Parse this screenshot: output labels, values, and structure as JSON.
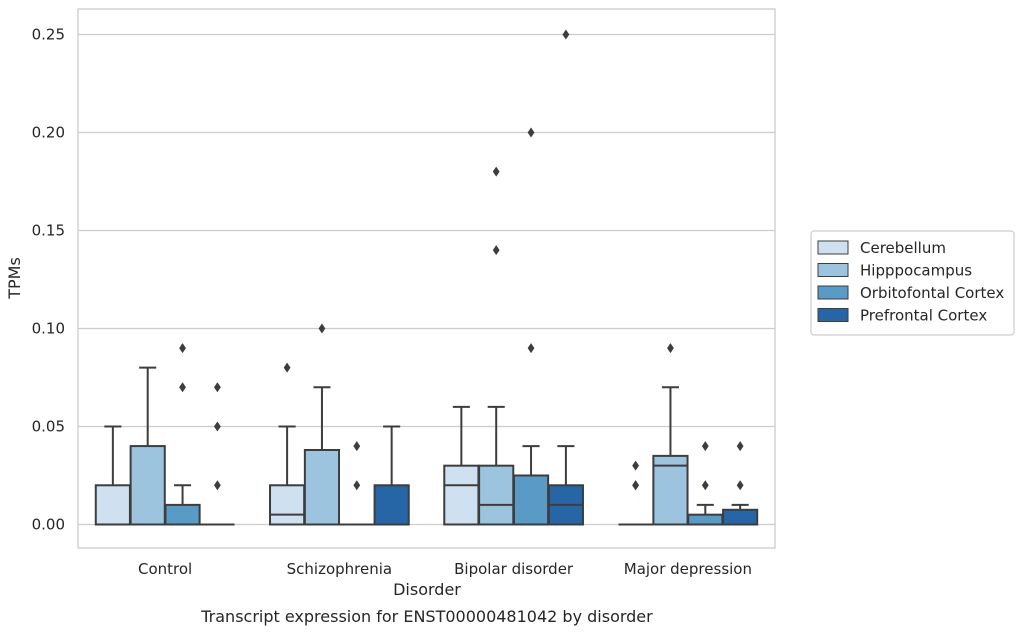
{
  "chart_data": {
    "type": "box",
    "title": "",
    "caption": "Transcript expression for ENST00000481042 by disorder",
    "xlabel": "Disorder",
    "ylabel": "TPMs",
    "ylim": [
      -0.012,
      0.263
    ],
    "yticks": [
      0.0,
      0.05,
      0.1,
      0.15,
      0.2,
      0.25
    ],
    "ytick_labels": [
      "0.00",
      "0.05",
      "0.10",
      "0.15",
      "0.20",
      "0.25"
    ],
    "grid": "horizontal",
    "legend_position": "right",
    "categories": [
      "Control",
      "Schizophrenia",
      "Bipolar disorder",
      "Major depression"
    ],
    "series": [
      {
        "name": "Cerebellum",
        "color": "#cfe0f1",
        "boxes": [
          {
            "q1": 0.0,
            "median": 0.0,
            "q3": 0.02,
            "whisker_low": 0.0,
            "whisker_high": 0.05,
            "outliers": []
          },
          {
            "q1": 0.0,
            "median": 0.005,
            "q3": 0.02,
            "whisker_low": 0.0,
            "whisker_high": 0.05,
            "outliers": [
              0.08
            ]
          },
          {
            "q1": 0.0,
            "median": 0.02,
            "q3": 0.03,
            "whisker_low": 0.0,
            "whisker_high": 0.06,
            "outliers": []
          },
          {
            "q1": 0.0,
            "median": 0.0,
            "q3": 0.0,
            "whisker_low": 0.0,
            "whisker_high": 0.0,
            "outliers": [
              0.02,
              0.02,
              0.03
            ]
          }
        ]
      },
      {
        "name": "Hipppocampus",
        "color": "#9cc4de",
        "boxes": [
          {
            "q1": 0.0,
            "median": 0.0,
            "q3": 0.04,
            "whisker_low": 0.0,
            "whisker_high": 0.08,
            "outliers": []
          },
          {
            "q1": 0.0,
            "median": 0.0,
            "q3": 0.038,
            "whisker_low": 0.0,
            "whisker_high": 0.07,
            "outliers": [
              0.1
            ]
          },
          {
            "q1": 0.0,
            "median": 0.01,
            "q3": 0.03,
            "whisker_low": 0.0,
            "whisker_high": 0.06,
            "outliers": [
              0.14,
              0.18
            ]
          },
          {
            "q1": 0.0,
            "median": 0.03,
            "q3": 0.035,
            "whisker_low": 0.0,
            "whisker_high": 0.07,
            "outliers": [
              0.09
            ]
          }
        ]
      },
      {
        "name": "Orbitofontal Cortex",
        "color": "#5a9ac7",
        "boxes": [
          {
            "q1": 0.0,
            "median": 0.0,
            "q3": 0.01,
            "whisker_low": 0.0,
            "whisker_high": 0.02,
            "outliers": [
              0.07,
              0.09
            ]
          },
          {
            "q1": 0.0,
            "median": 0.0,
            "q3": 0.0,
            "whisker_low": 0.0,
            "whisker_high": 0.0,
            "outliers": [
              0.02,
              0.04
            ]
          },
          {
            "q1": 0.0,
            "median": 0.0,
            "q3": 0.025,
            "whisker_low": 0.0,
            "whisker_high": 0.04,
            "outliers": [
              0.09,
              0.2
            ]
          },
          {
            "q1": 0.0,
            "median": 0.0,
            "q3": 0.005,
            "whisker_low": 0.0,
            "whisker_high": 0.01,
            "outliers": [
              0.02,
              0.04
            ]
          }
        ]
      },
      {
        "name": "Prefrontal Cortex",
        "color": "#2666a6",
        "boxes": [
          {
            "q1": 0.0,
            "median": 0.0,
            "q3": 0.0,
            "whisker_low": 0.0,
            "whisker_high": 0.0,
            "outliers": [
              0.02,
              0.05,
              0.07
            ]
          },
          {
            "q1": 0.0,
            "median": 0.0,
            "q3": 0.02,
            "whisker_low": 0.0,
            "whisker_high": 0.05,
            "outliers": []
          },
          {
            "q1": 0.0,
            "median": 0.01,
            "q3": 0.02,
            "whisker_low": 0.0,
            "whisker_high": 0.04,
            "outliers": [
              0.25
            ]
          },
          {
            "q1": 0.0,
            "median": 0.0,
            "q3": 0.0075,
            "whisker_low": 0.0,
            "whisker_high": 0.01,
            "outliers": [
              0.02,
              0.04
            ]
          }
        ]
      }
    ]
  }
}
